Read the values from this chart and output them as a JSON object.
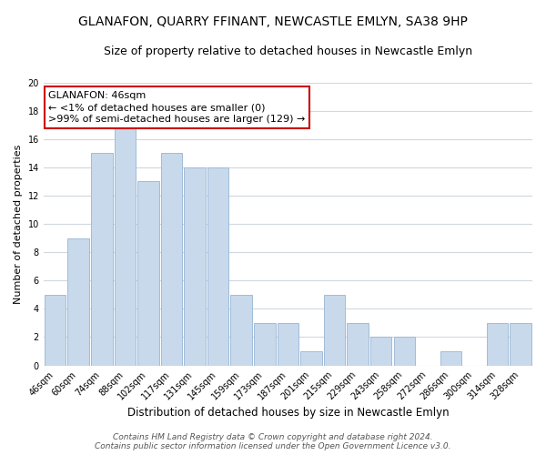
{
  "title": "GLANAFON, QUARRY FFINANT, NEWCASTLE EMLYN, SA38 9HP",
  "subtitle": "Size of property relative to detached houses in Newcastle Emlyn",
  "xlabel": "Distribution of detached houses by size in Newcastle Emlyn",
  "ylabel": "Number of detached properties",
  "bar_color": "#c8d9ec",
  "bar_edge_color": "#a0bcd8",
  "categories": [
    "46sqm",
    "60sqm",
    "74sqm",
    "88sqm",
    "102sqm",
    "117sqm",
    "131sqm",
    "145sqm",
    "159sqm",
    "173sqm",
    "187sqm",
    "201sqm",
    "215sqm",
    "229sqm",
    "243sqm",
    "258sqm",
    "272sqm",
    "286sqm",
    "300sqm",
    "314sqm",
    "328sqm"
  ],
  "values": [
    5,
    9,
    15,
    17,
    13,
    15,
    14,
    14,
    5,
    3,
    3,
    1,
    5,
    3,
    2,
    2,
    0,
    1,
    0,
    3,
    3
  ],
  "ylim": [
    0,
    20
  ],
  "yticks": [
    0,
    2,
    4,
    6,
    8,
    10,
    12,
    14,
    16,
    18,
    20
  ],
  "annotation_title": "GLANAFON: 46sqm",
  "annotation_line1": "← <1% of detached houses are smaller (0)",
  "annotation_line2": ">99% of semi-detached houses are larger (129) →",
  "annotation_box_color": "#ffffff",
  "annotation_box_edge": "#cc0000",
  "highlight_bar_index": 0,
  "footer1": "Contains HM Land Registry data © Crown copyright and database right 2024.",
  "footer2": "Contains public sector information licensed under the Open Government Licence v3.0.",
  "background_color": "#ffffff",
  "grid_color": "#d0d8e0",
  "title_fontsize": 10,
  "subtitle_fontsize": 9,
  "xlabel_fontsize": 8.5,
  "ylabel_fontsize": 8,
  "tick_fontsize": 7,
  "annotation_fontsize": 8,
  "footer_fontsize": 6.5
}
